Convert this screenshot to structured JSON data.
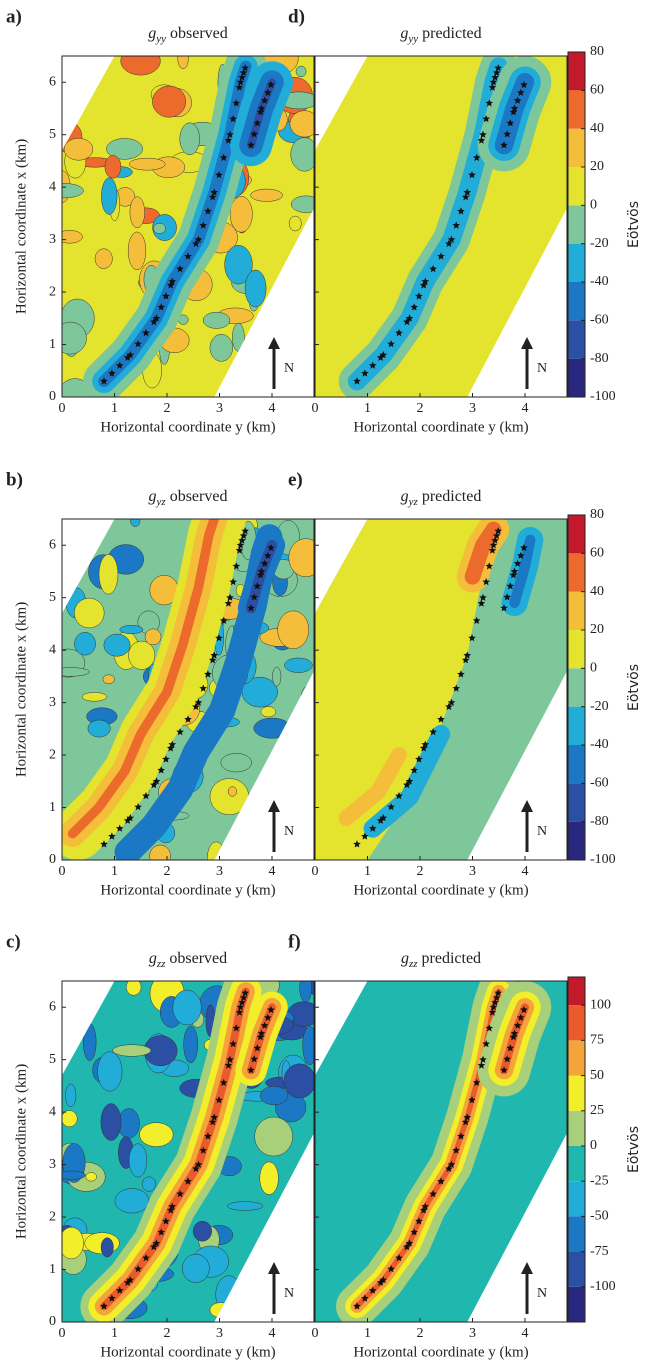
{
  "panels": [
    {
      "label": "a)",
      "symbol": "g",
      "subscript": "yy",
      "title": "observed",
      "xlabel": "Horizontal coordinate y (km)",
      "ylabel": "Horizontal coordinate x (km)",
      "north": "N",
      "xlim": [
        0,
        4.8
      ],
      "ylim": [
        0,
        6.5
      ],
      "xticks": [
        0,
        1,
        2,
        3,
        4
      ],
      "yticks": [
        0,
        1,
        2,
        3,
        4,
        5,
        6
      ],
      "ytick_labels": true
    },
    {
      "label": "d)",
      "symbol": "g",
      "subscript": "yy",
      "title": "predicted",
      "xlabel": "Horizontal coordinate y (km)",
      "north": "N",
      "xlim": [
        0,
        4.8
      ],
      "ylim": [
        0,
        6.5
      ],
      "xticks": [
        0,
        1,
        2,
        3,
        4
      ],
      "yticks": [
        0,
        1,
        2,
        3,
        4,
        5,
        6
      ],
      "ytick_labels": false
    },
    {
      "label": "b)",
      "symbol": "g",
      "subscript": "yz",
      "title": "observed",
      "xlabel": "Horizontal coordinate y (km)",
      "ylabel": "Horizontal coordinate x (km)",
      "north": "N",
      "xlim": [
        0,
        4.8
      ],
      "ylim": [
        0,
        6.5
      ],
      "xticks": [
        0,
        1,
        2,
        3,
        4
      ],
      "yticks": [
        0,
        1,
        2,
        3,
        4,
        5,
        6
      ],
      "ytick_labels": true
    },
    {
      "label": "e)",
      "symbol": "g",
      "subscript": "yz",
      "title": "predicted",
      "xlabel": "Horizontal coordinate y (km)",
      "north": "N",
      "xlim": [
        0,
        4.8
      ],
      "ylim": [
        0,
        6.5
      ],
      "xticks": [
        0,
        1,
        2,
        3,
        4
      ],
      "yticks": [
        0,
        1,
        2,
        3,
        4,
        5,
        6
      ],
      "ytick_labels": false
    },
    {
      "label": "c)",
      "symbol": "g",
      "subscript": "zz",
      "title": "observed",
      "xlabel": "Horizontal coordinate y (km)",
      "ylabel": "Horizontal coordinate x (km)",
      "north": "N",
      "xlim": [
        0,
        4.8
      ],
      "ylim": [
        0,
        6.5
      ],
      "xticks": [
        0,
        1,
        2,
        3,
        4
      ],
      "yticks": [
        0,
        1,
        2,
        3,
        4,
        5,
        6
      ],
      "ytick_labels": true
    },
    {
      "label": "f)",
      "symbol": "g",
      "subscript": "zz",
      "title": "predicted",
      "xlabel": "Horizontal coordinate y (km)",
      "north": "N",
      "xlim": [
        0,
        4.8
      ],
      "ylim": [
        0,
        6.5
      ],
      "xticks": [
        0,
        1,
        2,
        3,
        4
      ],
      "yticks": [
        0,
        1,
        2,
        3,
        4,
        5,
        6
      ],
      "ytick_labels": false
    }
  ],
  "colorbars": [
    {
      "label": "Eötvös",
      "lim": [
        -100,
        80
      ],
      "ticks": [
        80,
        60,
        40,
        20,
        0,
        -20,
        -40,
        -60,
        -80,
        -100
      ],
      "colors": [
        "#28287e",
        "#2a4fa3",
        "#1b78c4",
        "#22acd8",
        "#7dc79b",
        "#e4e42e",
        "#f4bd3a",
        "#ec6a2c",
        "#c21a2a"
      ]
    },
    {
      "label": "Eötvös",
      "lim": [
        -100,
        80
      ],
      "ticks": [
        80,
        60,
        40,
        20,
        0,
        -20,
        -40,
        -60,
        -80,
        -100
      ],
      "colors": [
        "#28287e",
        "#2a4fa3",
        "#1b78c4",
        "#22acd8",
        "#7dc79b",
        "#e4e42e",
        "#f4bd3a",
        "#ec6a2c",
        "#c21a2a"
      ]
    },
    {
      "label": "Eötvös",
      "lim": [
        -125,
        120
      ],
      "ticks": [
        100,
        75,
        50,
        25,
        0,
        -25,
        -50,
        -75,
        -100
      ],
      "colors": [
        "#28287e",
        "#2a4fa3",
        "#1b78c4",
        "#22acd8",
        "#20b8ae",
        "#a8cf7a",
        "#f2ee2a",
        "#f4a43a",
        "#ea5a2a",
        "#c21a2a"
      ]
    }
  ]
}
